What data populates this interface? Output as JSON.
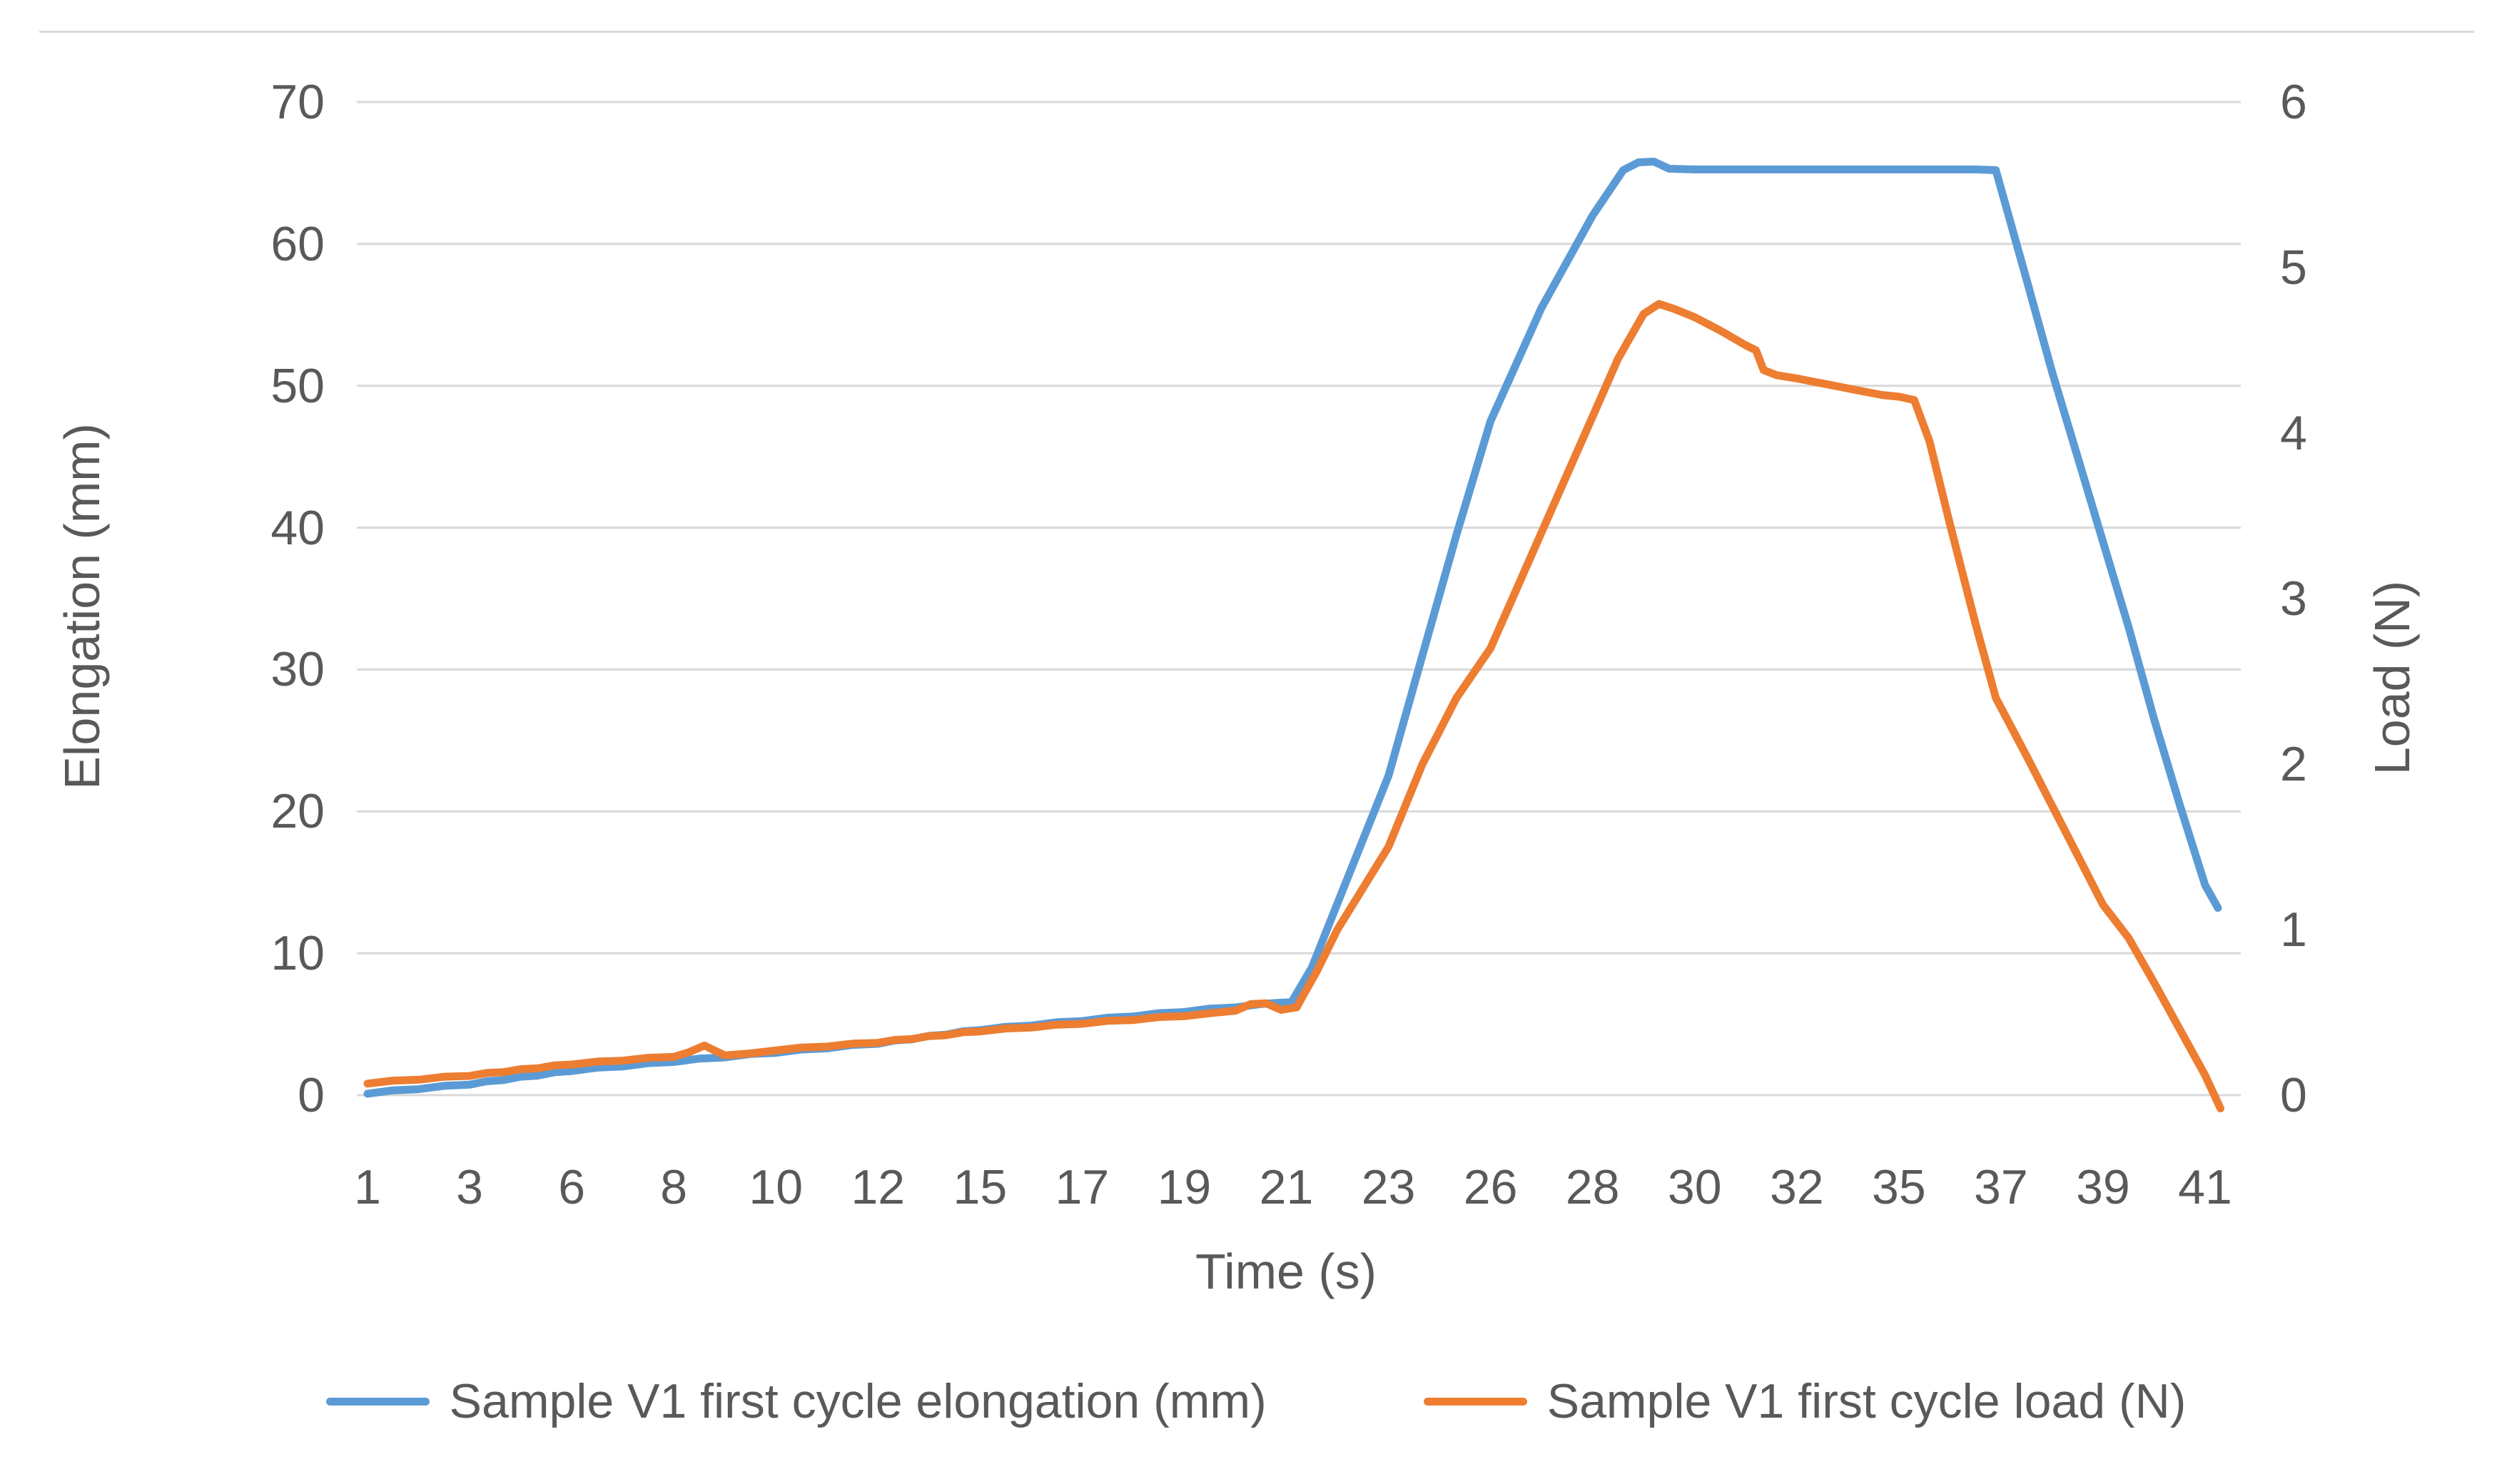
{
  "chart_data": {
    "type": "line",
    "title": "",
    "grid": true,
    "legend_position": "bottom",
    "background": "#FFFFFF",
    "x_axis": {
      "title": "Time (s)",
      "axis_type": "category",
      "tick_labels": [
        "1",
        "3",
        "6",
        "8",
        "10",
        "12",
        "15",
        "17",
        "19",
        "21",
        "23",
        "26",
        "28",
        "30",
        "32",
        "35",
        "37",
        "39",
        "41"
      ]
    },
    "y_left": {
      "title": "Elongation (mm)",
      "ticks": [
        0,
        10,
        20,
        30,
        40,
        50,
        60,
        70
      ],
      "range": [
        0,
        70
      ]
    },
    "y_right": {
      "title": "Load (N)",
      "ticks": [
        0,
        1,
        2,
        3,
        4,
        5,
        6
      ],
      "range": [
        0,
        6
      ]
    },
    "series": [
      {
        "name": "Sample V1 first cycle elongation (mm)",
        "color": "#5B9BD5",
        "axis": "left",
        "points": [
          [
            1,
            0.1
          ],
          [
            1.5,
            0.34
          ],
          [
            2,
            0.42
          ],
          [
            2.5,
            0.66
          ],
          [
            3,
            0.74
          ],
          [
            3.5,
            0.98
          ],
          [
            4,
            1.06
          ],
          [
            4.5,
            1.3
          ],
          [
            5,
            1.38
          ],
          [
            5.5,
            1.62
          ],
          [
            6,
            1.7
          ],
          [
            6.5,
            1.94
          ],
          [
            7,
            2.02
          ],
          [
            7.5,
            2.26
          ],
          [
            8,
            2.34
          ],
          [
            8.5,
            2.58
          ],
          [
            9,
            2.66
          ],
          [
            9.5,
            2.9
          ],
          [
            10,
            2.98
          ],
          [
            10.5,
            3.22
          ],
          [
            11,
            3.3
          ],
          [
            11.5,
            3.54
          ],
          [
            12,
            3.62
          ],
          [
            12.5,
            3.86
          ],
          [
            13,
            3.94
          ],
          [
            13.5,
            4.18
          ],
          [
            14,
            4.26
          ],
          [
            14.5,
            4.5
          ],
          [
            15,
            4.58
          ],
          [
            15.5,
            4.82
          ],
          [
            16,
            4.9
          ],
          [
            16.5,
            5.14
          ],
          [
            17,
            5.22
          ],
          [
            17.5,
            5.46
          ],
          [
            18,
            5.54
          ],
          [
            18.5,
            5.78
          ],
          [
            19,
            5.86
          ],
          [
            19.5,
            6.1
          ],
          [
            20,
            6.18
          ],
          [
            20.5,
            6.42
          ],
          [
            20.8,
            6.5
          ],
          [
            21.1,
            6.55
          ],
          [
            21.5,
            9
          ],
          [
            22,
            13.5
          ],
          [
            23,
            22.5
          ],
          [
            24,
            31
          ],
          [
            25,
            39.5
          ],
          [
            26,
            47.5
          ],
          [
            27,
            55.5
          ],
          [
            28,
            62
          ],
          [
            28.6,
            65.2
          ],
          [
            28.9,
            65.75
          ],
          [
            29.2,
            65.8
          ],
          [
            29.5,
            65.3
          ],
          [
            30,
            65.25
          ],
          [
            30.5,
            65.25
          ],
          [
            31,
            65.25
          ],
          [
            31.5,
            65.25
          ],
          [
            32,
            65.25
          ],
          [
            32.5,
            65.25
          ],
          [
            33,
            65.25
          ],
          [
            33.5,
            65.25
          ],
          [
            34,
            65.25
          ],
          [
            34.5,
            65.25
          ],
          [
            35,
            65.25
          ],
          [
            35.5,
            65.25
          ],
          [
            36,
            65.25
          ],
          [
            36.5,
            65.25
          ],
          [
            36.9,
            65.2
          ],
          [
            37.5,
            57.5
          ],
          [
            38,
            51
          ],
          [
            38.5,
            45
          ],
          [
            39,
            39
          ],
          [
            39.5,
            33
          ],
          [
            40,
            26.5
          ],
          [
            40.5,
            20.5
          ],
          [
            41,
            14.8
          ],
          [
            41.25,
            13.2
          ]
        ]
      },
      {
        "name": "Sample V1 first cycle load (N)",
        "color": "#ED7D31",
        "axis": "right",
        "points": [
          [
            1,
            0.07
          ],
          [
            1.5,
            0.088
          ],
          [
            2,
            0.093
          ],
          [
            2.5,
            0.111
          ],
          [
            3,
            0.116
          ],
          [
            3.5,
            0.134
          ],
          [
            4,
            0.139
          ],
          [
            4.5,
            0.157
          ],
          [
            5,
            0.162
          ],
          [
            5.5,
            0.18
          ],
          [
            6,
            0.185
          ],
          [
            6.5,
            0.203
          ],
          [
            7,
            0.208
          ],
          [
            7.5,
            0.226
          ],
          [
            8,
            0.231
          ],
          [
            8.3,
            0.26
          ],
          [
            8.6,
            0.3
          ],
          [
            9,
            0.24
          ],
          [
            9.5,
            0.252
          ],
          [
            10,
            0.27
          ],
          [
            10.5,
            0.288
          ],
          [
            11,
            0.293
          ],
          [
            11.5,
            0.311
          ],
          [
            12,
            0.316
          ],
          [
            12.5,
            0.334
          ],
          [
            13,
            0.339
          ],
          [
            13.5,
            0.357
          ],
          [
            14,
            0.362
          ],
          [
            14.5,
            0.38
          ],
          [
            15,
            0.385
          ],
          [
            15.5,
            0.403
          ],
          [
            16,
            0.408
          ],
          [
            16.5,
            0.426
          ],
          [
            17,
            0.431
          ],
          [
            17.5,
            0.449
          ],
          [
            18,
            0.454
          ],
          [
            18.5,
            0.472
          ],
          [
            19,
            0.477
          ],
          [
            19.5,
            0.495
          ],
          [
            20,
            0.51
          ],
          [
            20.3,
            0.55
          ],
          [
            20.6,
            0.555
          ],
          [
            20.9,
            0.515
          ],
          [
            21.2,
            0.53
          ],
          [
            21.6,
            0.75
          ],
          [
            22,
            1.0
          ],
          [
            22.5,
            1.25
          ],
          [
            23,
            1.5
          ],
          [
            23.5,
            1.75
          ],
          [
            24,
            2.0
          ],
          [
            24.5,
            2.2
          ],
          [
            25,
            2.4
          ],
          [
            25.5,
            2.55
          ],
          [
            26,
            2.7
          ],
          [
            26.5,
            3.05
          ],
          [
            27,
            3.4
          ],
          [
            27.5,
            3.75
          ],
          [
            28,
            4.1
          ],
          [
            28.5,
            4.45
          ],
          [
            29,
            4.72
          ],
          [
            29.3,
            4.78
          ],
          [
            29.6,
            4.75
          ],
          [
            30,
            4.7
          ],
          [
            30.5,
            4.62
          ],
          [
            31,
            4.53
          ],
          [
            31.2,
            4.5
          ],
          [
            31.35,
            4.38
          ],
          [
            31.6,
            4.35
          ],
          [
            32,
            4.33
          ],
          [
            32.5,
            4.31
          ],
          [
            33,
            4.29
          ],
          [
            33.5,
            4.27
          ],
          [
            34,
            4.25
          ],
          [
            34.5,
            4.23
          ],
          [
            35,
            4.22
          ],
          [
            35.3,
            4.2
          ],
          [
            35.6,
            3.95
          ],
          [
            36,
            3.45
          ],
          [
            36.5,
            2.85
          ],
          [
            36.9,
            2.4
          ],
          [
            37.5,
            2.05
          ],
          [
            38,
            1.75
          ],
          [
            38.5,
            1.45
          ],
          [
            39,
            1.15
          ],
          [
            39.5,
            0.95
          ],
          [
            40,
            0.68
          ],
          [
            40.5,
            0.4
          ],
          [
            41,
            0.12
          ],
          [
            41.3,
            -0.08
          ]
        ]
      }
    ]
  },
  "colors": {
    "grid": "#D9D9D9",
    "border": "#D9D9D9",
    "text": "#595959",
    "background": "#FFFFFF",
    "series_elongation": "#5B9BD5",
    "series_load": "#ED7D31"
  }
}
